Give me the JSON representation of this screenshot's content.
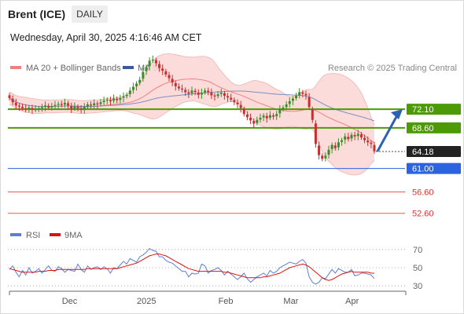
{
  "header": {
    "title": "Brent (ICE)",
    "timeframe": "DAILY",
    "timestamp": "Wednesday, April 30, 2025 4:16:46 AM CET"
  },
  "legend": {
    "ma20_label": "MA 20 + Bollinger Bands",
    "ma20_color": "#f08080",
    "ma50_label": "MA 50",
    "ma50_color": "#3a5a99",
    "credit": "Research © 2025 Trading Central"
  },
  "rsi_legend": {
    "rsi_label": "RSI",
    "rsi_color": "#5b7fd6",
    "ma_label": "9MA",
    "ma_color": "#e01010"
  },
  "chart_data": [
    {
      "type": "candlestick",
      "title": "Brent (ICE)",
      "x_tick_labels": [
        "Dec",
        "2025",
        "Feb",
        "Mar",
        "Apr"
      ],
      "ylim": [
        50.5,
        80.5
      ],
      "closes": [
        74.2,
        73.4,
        72.8,
        72.6,
        72.3,
        72.1,
        72.4,
        72.0,
        72.1,
        72.3,
        72.5,
        72.8,
        72.4,
        72.7,
        72.9,
        73.1,
        72.9,
        73.3,
        72.8,
        72.2,
        72.6,
        72.3,
        72.0,
        72.5,
        73.0,
        72.8,
        73.2,
        73.0,
        73.4,
        73.7,
        73.9,
        73.6,
        74.1,
        73.8,
        74.2,
        74.5,
        74.8,
        75.6,
        76.3,
        76.9,
        77.6,
        79.1,
        80.0,
        81.2,
        81.4,
        80.7,
        79.8,
        79.3,
        78.6,
        77.9,
        77.1,
        76.4,
        76.0,
        75.8,
        75.3,
        75.0,
        75.6,
        75.3,
        74.8,
        75.2,
        75.6,
        75.3,
        74.7,
        74.5,
        74.9,
        75.2,
        74.6,
        74.3,
        73.9,
        73.4,
        73.0,
        72.3,
        71.2,
        70.6,
        70.0,
        69.4,
        70.1,
        70.5,
        70.9,
        70.4,
        71.0,
        70.7,
        71.2,
        72.1,
        72.4,
        73.0,
        73.6,
        74.1,
        74.6,
        75.3,
        75.0,
        74.7,
        72.5,
        70.1,
        65.6,
        63.5,
        62.8,
        63.4,
        64.5,
        65.4,
        64.8,
        65.9,
        66.3,
        67.0,
        66.5,
        67.3,
        67.0,
        67.5,
        66.8,
        66.3,
        65.9,
        65.6,
        64.2
      ],
      "rsi": {
        "ylim": [
          25,
          75
        ],
        "levels": [
          70,
          50,
          30
        ],
        "series": [
          {
            "name": "RSI",
            "color": "#5b7fd6",
            "values": [
              48,
              52,
              45,
              40,
              47,
              42,
              50,
              44,
              46,
              49,
              44,
              48,
              52,
              47,
              46,
              51,
              49,
              45,
              48,
              47,
              46,
              54,
              48,
              45,
              52,
              48,
              50,
              51,
              48,
              51,
              49,
              44,
              50,
              49,
              53,
              57,
              54,
              60,
              58,
              56,
              62,
              64,
              67,
              71,
              69,
              68,
              62,
              62,
              58,
              56,
              55,
              52,
              49,
              46,
              46,
              40,
              44,
              43,
              44,
              54,
              52,
              44,
              47,
              48,
              50,
              47,
              42,
              46,
              43,
              40,
              37,
              40,
              44,
              38,
              34,
              37,
              40,
              42,
              44,
              41,
              47,
              44,
              46,
              50,
              52,
              54,
              56,
              55,
              54,
              57,
              59,
              55,
              40,
              34,
              32,
              34,
              39,
              38,
              43,
              48,
              44,
              49,
              47,
              45,
              45,
              48,
              41,
              42,
              44,
              44,
              43,
              42,
              38
            ]
          },
          {
            "name": "9MA",
            "color": "#e01010",
            "values": [
              49,
              48,
              47,
              46,
              45,
              45,
              45,
              45,
              45,
              46,
              46,
              46,
              47,
              47,
              47,
              48,
              48,
              48,
              48,
              48,
              48,
              48,
              48,
              48,
              49,
              49,
              49,
              49,
              49,
              49,
              49,
              49,
              49,
              49,
              50,
              51,
              52,
              53,
              54,
              55,
              57,
              59,
              61,
              63,
              64,
              65,
              65,
              64,
              63,
              61,
              59,
              57,
              55,
              53,
              51,
              49,
              48,
              47,
              46,
              46,
              46,
              46,
              46,
              46,
              46,
              46,
              45,
              45,
              44,
              43,
              42,
              41,
              40,
              39,
              39,
              39,
              39,
              39,
              40,
              40,
              41,
              42,
              43,
              44,
              46,
              48,
              50,
              51,
              52,
              53,
              54,
              53,
              51,
              48,
              45,
              42,
              39,
              37,
              36,
              37,
              39,
              41,
              43,
              44,
              45,
              46,
              45,
              45,
              45,
              45,
              45,
              44,
              44
            ]
          }
        ]
      },
      "levels": [
        {
          "value": 72.1,
          "label": "72.10",
          "kind": "resistance"
        },
        {
          "value": 68.6,
          "label": "68.60",
          "kind": "resistance"
        },
        {
          "value": 64.18,
          "label": "64.18",
          "kind": "last"
        },
        {
          "value": 61.0,
          "label": "61.00",
          "kind": "pivot"
        },
        {
          "value": 56.6,
          "label": "56.60",
          "kind": "support"
        },
        {
          "value": 52.6,
          "label": "52.60",
          "kind": "support"
        }
      ],
      "forecast_target": 72.1,
      "level_colors": {
        "resistance": "#4c9a06",
        "last": "#222222",
        "pivot": "#2b63e0",
        "support": "#e03030",
        "arrow": "#2d62b2",
        "candle_up": "#3a8d2a",
        "candle_down": "#c83030",
        "band_fill": "#fbd5d5"
      },
      "rsi_tick_labels": [
        "70",
        "50",
        "30"
      ]
    }
  ]
}
